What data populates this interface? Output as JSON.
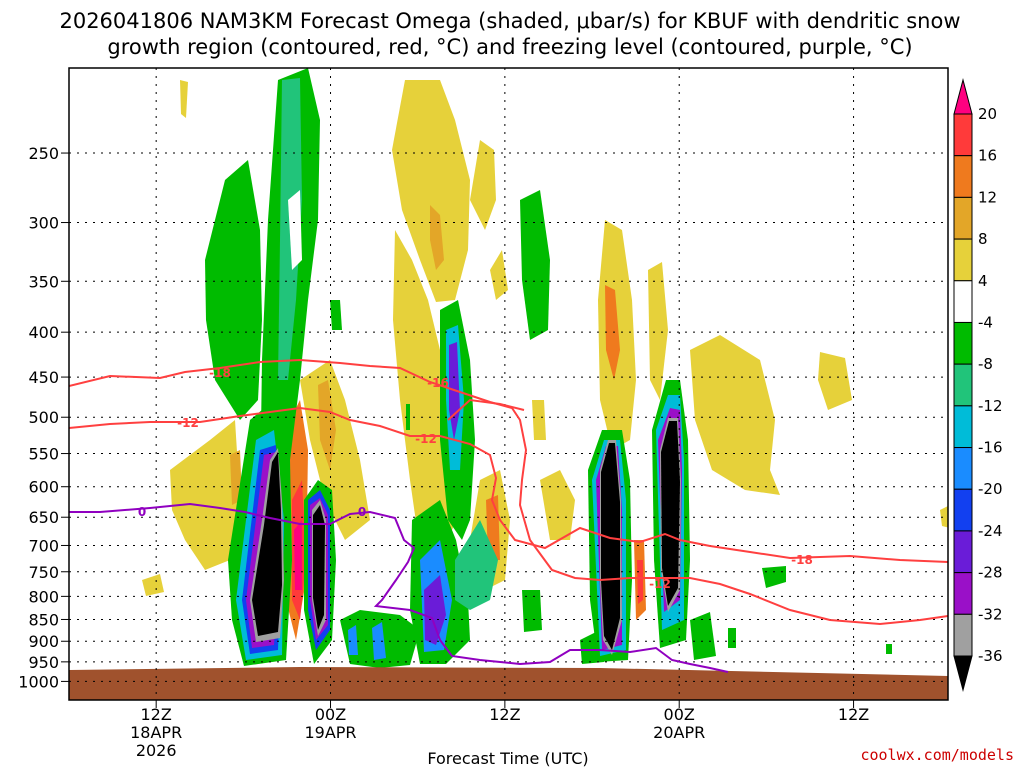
{
  "chart_data": {
    "type": "heatmap",
    "title_lines": [
      "2026041806 NAM3KM Forecast Omega (shaded, μbar/s) for KBUF with dendritic snow",
      "growth region (contoured, red, °C) and freezing level (contoured, purple, °C)"
    ],
    "xlabel": "Forecast Time (UTC)",
    "x_ticks": [
      {
        "label": [
          "12Z",
          "18APR",
          "2026"
        ],
        "hours": 6
      },
      {
        "label": [
          "00Z",
          "19APR"
        ],
        "hours": 18
      },
      {
        "label": [
          "12Z"
        ],
        "hours": 30
      },
      {
        "label": [
          "00Z",
          "20APR"
        ],
        "hours": 42
      },
      {
        "label": [
          "12Z"
        ],
        "hours": 54
      }
    ],
    "x_range_hours": [
      0,
      60.5
    ],
    "y_axis": {
      "scale": "log",
      "inverted": true,
      "unit": "hPa",
      "range": [
        200,
        1050
      ],
      "ticks": [
        250,
        300,
        350,
        400,
        450,
        500,
        550,
        600,
        650,
        700,
        750,
        800,
        850,
        900,
        950,
        1000
      ]
    },
    "grid": true,
    "colorbar": {
      "unit": "μbar/s",
      "position": "right",
      "levels": [
        {
          "label": "20",
          "color": "#ff0080"
        },
        {
          "label": "16",
          "color": "#ff3a3a"
        },
        {
          "label": "12",
          "color": "#ef7a1e"
        },
        {
          "label": "8",
          "color": "#e3a628"
        },
        {
          "label": "4",
          "color": "#e6d13a"
        },
        {
          "label": "-4",
          "color": "#ffffff"
        },
        {
          "label": "-8",
          "color": "#00bb00"
        },
        {
          "label": "-12",
          "color": "#21c47a"
        },
        {
          "label": "-16",
          "color": "#00bcd8"
        },
        {
          "label": "-20",
          "color": "#1a8cff"
        },
        {
          "label": "-24",
          "color": "#1240f0"
        },
        {
          "label": "-28",
          "color": "#6a1cd8"
        },
        {
          "label": "-32",
          "color": "#9a10c8"
        },
        {
          "label": "-36",
          "color": "#a0a0a0"
        }
      ],
      "min_color": "#000000"
    },
    "contours": {
      "dgz": {
        "color": "#ff4040",
        "labels": [
          "-18",
          "-12",
          "-16",
          "-12",
          "-18",
          "-12"
        ]
      },
      "freezing": {
        "color": "#9000c0",
        "labels": [
          "0",
          "0"
        ]
      }
    },
    "ground_color": "#a0522d",
    "credit": "coolwx.com/models"
  }
}
